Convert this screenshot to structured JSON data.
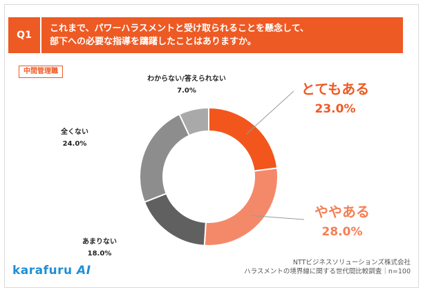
{
  "header": {
    "badge": "Q1",
    "question_line1": "これまで、パワーハラスメントと受け取られることを懸念して、",
    "question_line2": "部下への必要な指導を躊躇したことはありますか。"
  },
  "segment_label": "中間管理職",
  "colors": {
    "accent": "#ee5a24",
    "slice_often": "#f2561d",
    "slice_sometimes": "#f4896a",
    "slice_rarely": "#606060",
    "slice_never": "#8d8d8d",
    "slice_unknown": "#a9a9a9"
  },
  "chart_data": {
    "type": "pie",
    "donut": true,
    "categories": [
      "とてもある",
      "ややある",
      "あまりない",
      "全くない",
      "わからない/答えられない"
    ],
    "values": [
      23.0,
      28.0,
      18.0,
      24.0,
      7.0
    ],
    "value_labels": [
      "23.0%",
      "28.0%",
      "18.0%",
      "24.0%",
      "7.0%"
    ],
    "start": "12 o'clock",
    "direction": "clockwise"
  },
  "footer": {
    "logo_text": "karafuru",
    "logo_ai": "AI",
    "source_line1": "NTTビジネスソリューションズ株式会社",
    "source_line2": "ハラスメントの境界線に関する世代間比較調査｜n=100"
  }
}
